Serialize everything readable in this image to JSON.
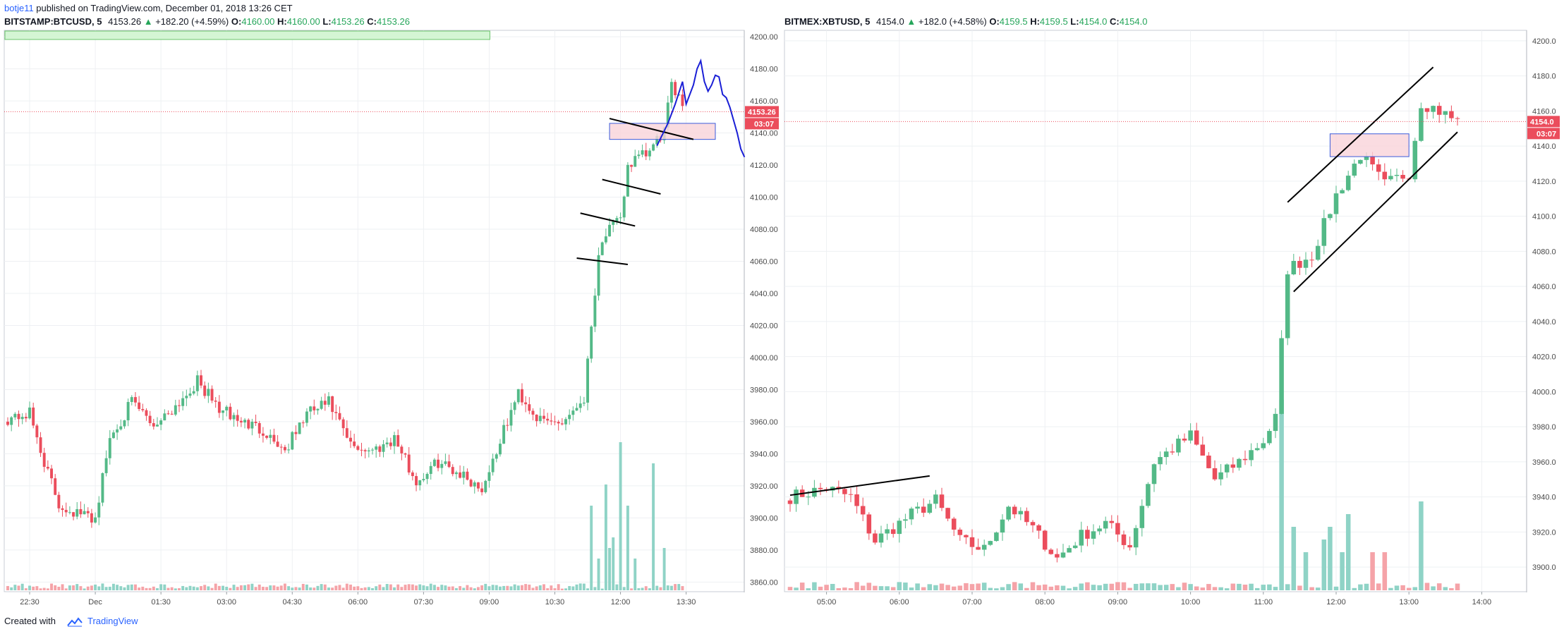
{
  "published_bar": {
    "author": "botje11",
    "text": " published on TradingView.com, December 01, 2018 13:26 CET"
  },
  "footer": {
    "created_with": "Created with",
    "brand": "TradingView"
  },
  "colors": {
    "up": "#53b987",
    "down": "#eb4d5c",
    "vol_up": "#8fd3c6",
    "vol_down": "#f5a3a8",
    "grid": "#eef0f3",
    "price_line": "#eb4d5c",
    "drawing": "#000000",
    "freehand": "#1a1fd6",
    "zone_fill": "#f9d3d9",
    "zone_stroke": "#3b5bdb",
    "label_bg": "#eb4d5c"
  },
  "chart_data": [
    {
      "type": "candlestick",
      "name": "left",
      "symbol": "BITSTAMP:BTCUSD, 5",
      "price": "4153.26",
      "change": "+182.20 (+4.59%)",
      "ohlc": {
        "O": "4160.00",
        "H": "4160.00",
        "L": "4153.26",
        "C": "4153.26"
      },
      "ylim": [
        3854,
        4204
      ],
      "yticks": [
        "4200.00",
        "4180.00",
        "4160.00",
        "4140.00",
        "4120.00",
        "4100.00",
        "4080.00",
        "4060.00",
        "4040.00",
        "4020.00",
        "4000.00",
        "3980.00",
        "3960.00",
        "3940.00",
        "3920.00",
        "3900.00",
        "3880.00",
        "3860.00"
      ],
      "last_price_label": "4153.26",
      "countdown_label": "03:07",
      "xlabels": [
        {
          "i": 6,
          "label": "22:30"
        },
        {
          "i": 24,
          "label": "Dec"
        },
        {
          "i": 42,
          "label": "01:30"
        },
        {
          "i": 60,
          "label": "03:00"
        },
        {
          "i": 78,
          "label": "04:30"
        },
        {
          "i": 96,
          "label": "06:00"
        },
        {
          "i": 114,
          "label": "07:30"
        },
        {
          "i": 132,
          "label": "09:00"
        },
        {
          "i": 150,
          "label": "10:30"
        },
        {
          "i": 168,
          "label": "12:00"
        },
        {
          "i": 186,
          "label": "13:30"
        }
      ],
      "bar_count": 203,
      "drawings": {
        "lines": [
          {
            "i1": 156,
            "p1": 4062,
            "i2": 170,
            "p2": 4058
          },
          {
            "i1": 157,
            "p1": 4090,
            "i2": 172,
            "p2": 4082
          },
          {
            "i1": 163,
            "p1": 4111,
            "i2": 179,
            "p2": 4102
          },
          {
            "i1": 165,
            "p1": 4149,
            "i2": 188,
            "p2": 4136
          }
        ],
        "zones": [
          {
            "i1": 165,
            "p1": 4146,
            "i2": 194,
            "p2": 4136
          }
        ],
        "freehand": [
          [
            178,
            4132
          ],
          [
            181,
            4146
          ],
          [
            183,
            4158
          ],
          [
            185,
            4172
          ],
          [
            186,
            4158
          ],
          [
            188,
            4170
          ],
          [
            189,
            4180
          ],
          [
            190,
            4185
          ],
          [
            191,
            4172
          ],
          [
            192,
            4166
          ],
          [
            193,
            4170
          ],
          [
            194,
            4176
          ],
          [
            195,
            4175
          ],
          [
            196,
            4164
          ],
          [
            197,
            4162
          ],
          [
            198,
            4156
          ],
          [
            199,
            4148
          ],
          [
            200,
            4140
          ],
          [
            201,
            4130
          ],
          [
            202,
            4125
          ]
        ]
      },
      "top_banner": {
        "i1": 0,
        "i2": 132,
        "p": 4200
      }
    },
    {
      "type": "candlestick",
      "name": "right",
      "symbol": "BITMEX:XBTUSD, 5",
      "price": "4154.0",
      "change": "+182.0 (+4.58%)",
      "ohlc": {
        "O": "4159.5",
        "H": "4159.5",
        "L": "4154.0",
        "C": "4154.0"
      },
      "ylim": [
        3886,
        4206
      ],
      "yticks": [
        "4200.0",
        "4180.0",
        "4160.0",
        "4140.0",
        "4120.0",
        "4100.0",
        "4080.0",
        "4060.0",
        "4040.0",
        "4020.0",
        "4000.0",
        "3980.0",
        "3960.0",
        "3940.0",
        "3920.0",
        "3900.0"
      ],
      "last_price_label": "4154.0",
      "countdown_label": "03:07",
      "xlabels": [
        {
          "i": 6,
          "label": "05:00"
        },
        {
          "i": 18,
          "label": "06:00"
        },
        {
          "i": 30,
          "label": "07:00"
        },
        {
          "i": 42,
          "label": "08:00"
        },
        {
          "i": 54,
          "label": "09:00"
        },
        {
          "i": 66,
          "label": "10:00"
        },
        {
          "i": 78,
          "label": "11:00"
        },
        {
          "i": 90,
          "label": "12:00"
        },
        {
          "i": 102,
          "label": "13:00"
        },
        {
          "i": 114,
          "label": "14:00"
        }
      ],
      "bar_count": 122,
      "drawings": {
        "lines": [
          {
            "i1": 0,
            "p1": 3941,
            "i2": 23,
            "p2": 3952
          },
          {
            "i1": 82,
            "p1": 4108,
            "i2": 106,
            "p2": 4185
          },
          {
            "i1": 83,
            "p1": 4057,
            "i2": 110,
            "p2": 4148
          }
        ],
        "zones": [
          {
            "i1": 89,
            "p1": 4147,
            "i2": 102,
            "p2": 4134
          }
        ],
        "freehand": []
      }
    }
  ]
}
